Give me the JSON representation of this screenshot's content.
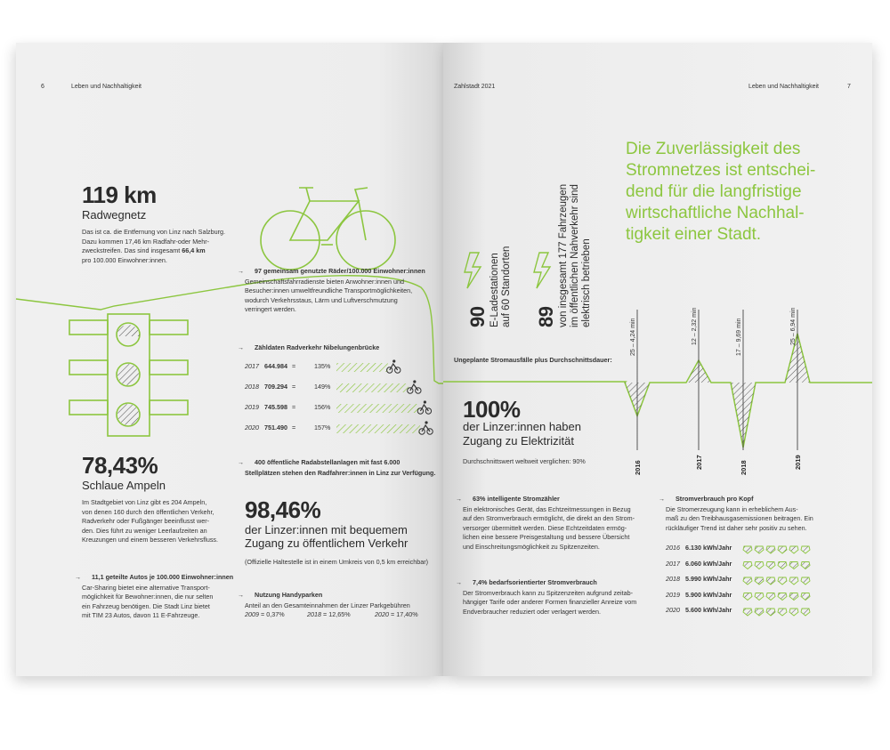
{
  "left_page": {
    "number": "6",
    "header": "Leben und Nachhaltigkeit",
    "radweg": {
      "value": "119 km",
      "label": "Radwegnetz",
      "text": [
        "Das ist ca. die Entfernung von Linz nach Salzburg.",
        "Dazu kommen 17,46 km Radfahr-oder Mehr-",
        "zweckstreifen. Das sind insgesamt ",
        "66,4 km",
        "pro 100.000 Einwohner:innen."
      ]
    },
    "raeder": {
      "title": "97 gemeinsam genutzte Räder/100.000 Einwohner:innen",
      "text": [
        "Gemeinschaftsfahrradienste bieten Anwohner:innen und",
        "Besucher:innen umweltfreundliche Transportmöglichkeiten,",
        "wodurch Verkehrsstaus, Lärm und Luftverschmutzung",
        "verringert werden."
      ]
    },
    "zaehldaten": {
      "title": "Zähldaten Radverkehr Nibelungenbrücke",
      "rows": [
        {
          "year": "2017",
          "value": "644.984",
          "eq": "=",
          "pct": "135%",
          "ratio": 1.35
        },
        {
          "year": "2018",
          "value": "709.294",
          "eq": "=",
          "pct": "149%",
          "ratio": 1.49
        },
        {
          "year": "2019",
          "value": "745.598",
          "eq": "=",
          "pct": "156%",
          "ratio": 1.56
        },
        {
          "year": "2020",
          "value": "751.490",
          "eq": "=",
          "pct": "157%",
          "ratio": 1.57
        }
      ]
    },
    "abstell": {
      "text": [
        "400 öffentliche Radabstellanlagen mit fast 6.000",
        "Stellplätzen stehen den Radfahrer:innen in Linz zur Verfügung."
      ]
    },
    "ampeln": {
      "value": "78,43%",
      "label": "Schlaue Ampeln",
      "text": [
        "Im Stadtgebiet von Linz gibt es 204 Ampeln,",
        "von denen 160 durch den öffentlichen Verkehr,",
        "Radverkehr oder Fußgänger beeinflusst wer-",
        "den. Dies führt zu weniger Leerlaufzeiten an",
        "Kreuzungen und einem besseren Verkehrsfluss."
      ]
    },
    "oev": {
      "value": "98,46%",
      "label1": "der Linzer:innen mit bequemem",
      "label2": "Zugang zu öffentlichem Verkehr",
      "note": "(Offizielle Haltestelle ist in einem Umkreis von 0,5 km erreichbar)"
    },
    "autos": {
      "title": "11,1 geteilte Autos je 100.000 Einwohner:innen",
      "text": [
        "Car-Sharing bietet eine alternative Transport-",
        "möglichkeit für Bewohner:innen, die nur selten",
        "ein Fahrzeug benötigen. Die Stadt Linz bietet",
        "mit TIM 23 Autos, davon 11 E-Fahrzeuge."
      ]
    },
    "handy": {
      "title": "Nutzung Handyparken",
      "text": "Anteil an den Gesamteinnahmen der Linzer Parkgebühren",
      "values": [
        {
          "year": "2009",
          "eq": "=",
          "pct": "0,37%"
        },
        {
          "year": "2018",
          "eq": "=",
          "pct": "12,65%"
        },
        {
          "year": "2020",
          "eq": "=",
          "pct": "17,40%"
        }
      ]
    }
  },
  "right_page": {
    "number": "7",
    "header_left": "Zahlstadt 2021",
    "header_right": "Leben und Nachhaltigkeit",
    "quote": [
      "Die Zuverlässigkeit des",
      "Stromnetzes ist entschei-",
      "dend für die langfristige",
      "wirtschaftliche Nachhal-",
      "tigkeit einer Stadt."
    ],
    "ladestationen": {
      "value": "90",
      "line1": "E-Ladestationen",
      "line2": "auf 60 Standorten"
    },
    "nahverkehr": {
      "value": "89",
      "line1": "von insgesamt 177 Fahrzeugen",
      "line2": "im öffentlichen Nahverkehr sind",
      "line3": "elektrisch betrieben"
    },
    "stromausfall": {
      "title": "Ungeplante Stromausfälle plus Durchschnittsdauer:",
      "chart_data": {
        "type": "line",
        "x": [
          "2016",
          "2017",
          "2018",
          "2019"
        ],
        "labels": [
          "25 – 4,24 min",
          "12 – 2,32 min",
          "17 – 9,69 min",
          "25 – 6,94 min"
        ],
        "counts": [
          25,
          12,
          17,
          25
        ],
        "minutes": [
          4.24,
          2.32,
          9.69,
          6.94
        ]
      }
    },
    "elektrizitaet": {
      "value": "100%",
      "label1": "der Linzer:innen haben",
      "label2": "Zugang zu Elektrizität",
      "note": "Durchschnittswert weltweit verglichen: 90%"
    },
    "stromzaehler": {
      "title": "63% intelligente Stromzähler",
      "text": [
        "Ein elektronisches Gerät, das Echtzeitmessungen in Bezug",
        "auf den Stromverbrauch ermöglicht, die direkt an den Strom-",
        "versorger übermittelt werden. Diese Echtzeitdaten ermög-",
        "lichen eine bessere Preisgestaltung und bessere Übersicht",
        "und Einschreitungsmöglichkeit zu Spitzenzeiten."
      ]
    },
    "bedarf": {
      "title": "7,4% bedarfsorientierter Stromverbrauch",
      "text": [
        "Der Stromverbrauch kann zu Spitzenzeiten aufgrund zeitab-",
        "hängiger Tarife oder anderer Formen finanzieller Anreize vom",
        "Endverbraucher reduziert oder verlagert werden."
      ]
    },
    "verbrauch": {
      "title": "Stromverbrauch pro Kopf",
      "text": [
        "Die Stromerzeugung kann in erheblichem Aus-",
        "maß zu den Treibhausgasemissionen beitragen. Ein",
        "rückläufiger Trend ist daher sehr positiv zu sehen."
      ],
      "rows": [
        {
          "year": "2016",
          "value": "6.130 kWh/Jahr"
        },
        {
          "year": "2017",
          "value": "6.060 kWh/Jahr"
        },
        {
          "year": "2018",
          "value": "5.990 kWh/Jahr"
        },
        {
          "year": "2019",
          "value": "5.900 kWh/Jahr"
        },
        {
          "year": "2020",
          "value": "5.600 kWh/Jahr"
        }
      ]
    },
    "colors": {
      "accent": "#8cc63f",
      "text": "#2b2b2b"
    }
  }
}
